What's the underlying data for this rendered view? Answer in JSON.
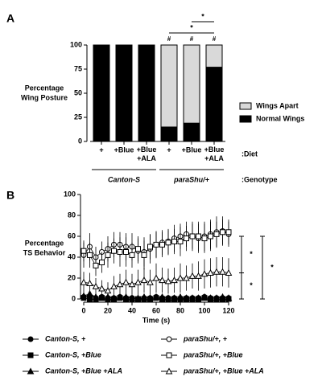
{
  "chart_data": [
    {
      "type": "bar",
      "stacked": true,
      "panel_label": "A",
      "ylabel": [
        "Percentage",
        "Wing Posture"
      ],
      "categories": [
        "+",
        "+Blue",
        "+Blue +ALA",
        "+",
        "+Blue",
        "+Blue +ALA"
      ],
      "row_labels": [
        ":Diet",
        ":Genotype"
      ],
      "groups": [
        "Canton-S",
        "paraShu/+"
      ],
      "series": [
        {
          "name": "Wings Apart",
          "color": "#d9d9d9",
          "values": [
            0,
            0,
            0,
            85,
            81,
            23
          ]
        },
        {
          "name": "Normal Wings",
          "color": "#000000",
          "values": [
            100,
            100,
            100,
            15,
            19,
            77
          ]
        }
      ],
      "category_marks": [
        null,
        null,
        null,
        "#",
        "#",
        "#"
      ],
      "brackets": [
        "*",
        "*"
      ],
      "ylim": [
        0,
        100
      ],
      "yticks": [
        0,
        25,
        50,
        75,
        100
      ]
    },
    {
      "type": "line",
      "panel_label": "B",
      "ylabel": [
        "Percentage",
        "TS Behavior"
      ],
      "xlabel": "Time (s)",
      "x": [
        0,
        5,
        10,
        15,
        20,
        25,
        30,
        35,
        40,
        45,
        50,
        55,
        60,
        65,
        70,
        75,
        80,
        85,
        90,
        95,
        100,
        105,
        110,
        115,
        120
      ],
      "xlim": [
        0,
        120
      ],
      "xticks": [
        0,
        20,
        40,
        60,
        80,
        100,
        120
      ],
      "ylim": [
        0,
        100
      ],
      "yticks": [
        0,
        20,
        40,
        60,
        80,
        100
      ],
      "series": [
        {
          "name": "Canton-S, +",
          "color": "#000000",
          "marker": "circle",
          "filled": true,
          "values": [
            2,
            3,
            1,
            2,
            1,
            1,
            2,
            1,
            1,
            0,
            1,
            1,
            2,
            1,
            1,
            1,
            0,
            1,
            1,
            1,
            2,
            1,
            1,
            1,
            1
          ]
        },
        {
          "name": "Canton-S, +Blue",
          "color": "#000000",
          "marker": "square",
          "filled": true,
          "values": [
            1,
            0,
            0,
            1,
            0,
            0,
            1,
            0,
            0,
            0,
            0,
            0,
            1,
            0,
            0,
            0,
            0,
            0,
            0,
            0,
            1,
            0,
            0,
            0,
            0
          ]
        },
        {
          "name": "Canton-S, +Blue +ALA",
          "color": "#000000",
          "marker": "triangle",
          "filled": true,
          "values": [
            3,
            5,
            2,
            1,
            2,
            1,
            2,
            2,
            1,
            1,
            2,
            1,
            2,
            2,
            1,
            1,
            2,
            1,
            1,
            1,
            2,
            1,
            1,
            2,
            1
          ]
        },
        {
          "name": "paraShu/+, +",
          "color": "#000000",
          "marker": "circle",
          "filled": false,
          "values": [
            42,
            50,
            40,
            45,
            48,
            52,
            52,
            50,
            50,
            46,
            45,
            48,
            52,
            54,
            55,
            58,
            60,
            62,
            60,
            58,
            60,
            62,
            64,
            65,
            62
          ],
          "errors": [
            12,
            13,
            10,
            10,
            12,
            12,
            12,
            13,
            13,
            12,
            14,
            14,
            13,
            12,
            12,
            13,
            12,
            12,
            14,
            14,
            14,
            14,
            15,
            14,
            12
          ]
        },
        {
          "name": "paraShu/+, +Blue",
          "color": "#000000",
          "marker": "square",
          "filled": false,
          "values": [
            46,
            42,
            32,
            35,
            42,
            46,
            45,
            45,
            42,
            48,
            42,
            50,
            52,
            52,
            54,
            55,
            55,
            58,
            60,
            60,
            58,
            60,
            62,
            64,
            64
          ],
          "errors": [
            10,
            12,
            10,
            10,
            12,
            12,
            14,
            14,
            12,
            12,
            14,
            12,
            12,
            12,
            12,
            12,
            14,
            12,
            12,
            14,
            14,
            14,
            12,
            12,
            12
          ]
        },
        {
          "name": "paraShu/+, +Blue +ALA",
          "color": "#000000",
          "marker": "triangle",
          "filled": false,
          "values": [
            16,
            15,
            12,
            10,
            8,
            12,
            14,
            16,
            14,
            16,
            18,
            16,
            20,
            18,
            17,
            18,
            20,
            20,
            22,
            22,
            24,
            25,
            26,
            26,
            25
          ],
          "errors": [
            10,
            10,
            8,
            8,
            8,
            10,
            10,
            12,
            10,
            12,
            12,
            12,
            14,
            12,
            12,
            12,
            14,
            12,
            12,
            14,
            14,
            14,
            14,
            14,
            14
          ]
        }
      ],
      "brackets": [
        "*",
        "*",
        "*"
      ]
    }
  ]
}
